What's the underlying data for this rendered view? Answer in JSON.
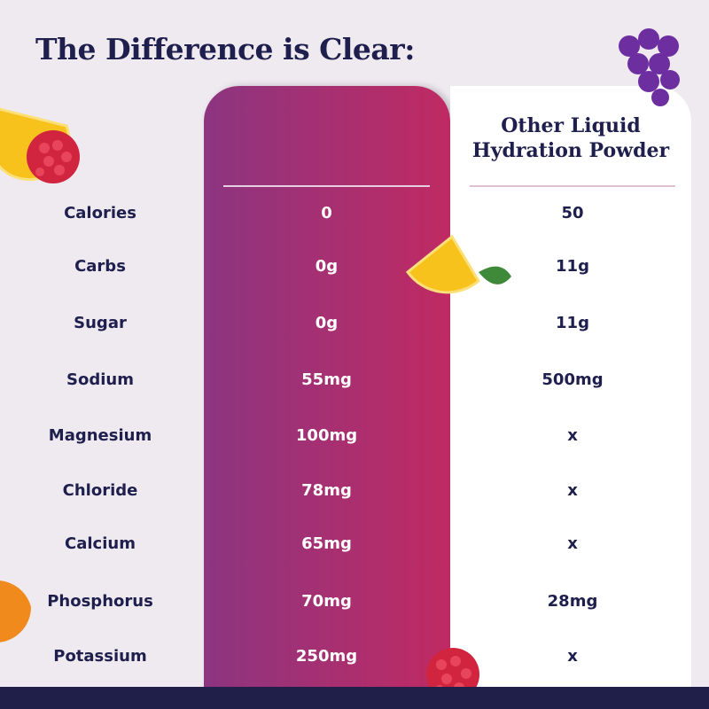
{
  "title": "The Difference is Clear:",
  "columns": {
    "brand_header": "",
    "other_header_line1": "Other Liquid",
    "other_header_line2": "Hydration Powder"
  },
  "rows": [
    {
      "label": "Calories",
      "brand": "0",
      "other": "50"
    },
    {
      "label": "Carbs",
      "brand": "0g",
      "other": "11g"
    },
    {
      "label": "Sugar",
      "brand": "0g",
      "other": "11g"
    },
    {
      "label": "Sodium",
      "brand": "55mg",
      "other": "500mg"
    },
    {
      "label": "Magnesium",
      "brand": "100mg",
      "other": "x"
    },
    {
      "label": "Chloride",
      "brand": "78mg",
      "other": "x"
    },
    {
      "label": "Calcium",
      "brand": "65mg",
      "other": "x"
    },
    {
      "label": "Phosphorus",
      "brand": "70mg",
      "other": "28mg"
    },
    {
      "label": "Potassium",
      "brand": "250mg",
      "other": "x"
    }
  ],
  "colors": {
    "navy": "#1e1f4d",
    "gradient_start": "#8c3580",
    "gradient_end": "#c02a63",
    "background": "#efe9f0"
  }
}
